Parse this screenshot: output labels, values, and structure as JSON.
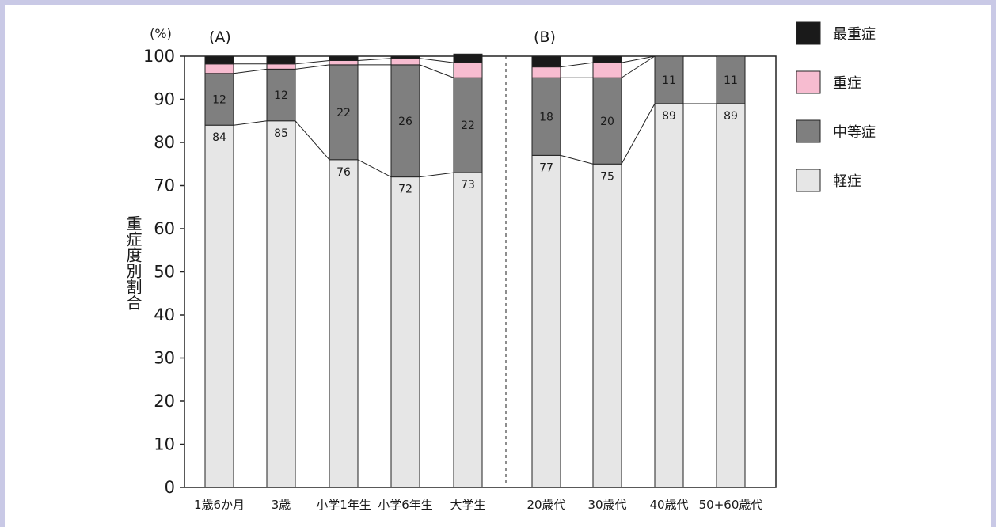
{
  "chart_data": {
    "type": "bar",
    "stacked": true,
    "unit_label": "(%)",
    "ylabel": "重症度別割合",
    "ylim": [
      0,
      100
    ],
    "yticks": [
      "0",
      "10",
      "20",
      "30",
      "40",
      "50",
      "60",
      "70",
      "80",
      "90",
      "100"
    ],
    "panels": [
      {
        "label": "(A)",
        "categories": [
          "1歳6か月",
          "3歳",
          "小学1年生",
          "小学6年生",
          "大学生"
        ]
      },
      {
        "label": "(B)",
        "categories": [
          "20歳代",
          "30歳代",
          "40歳代",
          "50+60歳代"
        ]
      }
    ],
    "categories": [
      "1歳6か月",
      "3歳",
      "小学1年生",
      "小学6年生",
      "大学生",
      "20歳代",
      "30歳代",
      "40歳代",
      "50+60歳代"
    ],
    "series": [
      {
        "name": "軽症",
        "color": "#e6e6e6",
        "values": [
          84,
          85,
          76,
          72,
          73,
          77,
          75,
          89,
          89
        ]
      },
      {
        "name": "中等症",
        "color": "#7f7f7f",
        "values": [
          12,
          12,
          22,
          26,
          22,
          18,
          20,
          11,
          11
        ]
      },
      {
        "name": "重症",
        "color": "#f7bcd0",
        "values": [
          2.2,
          1.2,
          1,
          1.5,
          3.5,
          2.5,
          3.5,
          0,
          0
        ]
      },
      {
        "name": "最重症",
        "color": "#1a1a1a",
        "values": [
          1.8,
          1.8,
          1,
          0.5,
          2,
          2.5,
          1.5,
          0,
          0
        ]
      }
    ],
    "data_labels": {
      "軽症": [
        "84",
        "85",
        "76",
        "72",
        "73",
        "77",
        "75",
        "89",
        "89"
      ],
      "中等症": [
        "12",
        "12",
        "22",
        "26",
        "22",
        "18",
        "20",
        "11",
        "11"
      ]
    },
    "legend": {
      "position": "right",
      "order": [
        "最重症",
        "重症",
        "中等症",
        "軽症"
      ]
    },
    "grid": false
  }
}
